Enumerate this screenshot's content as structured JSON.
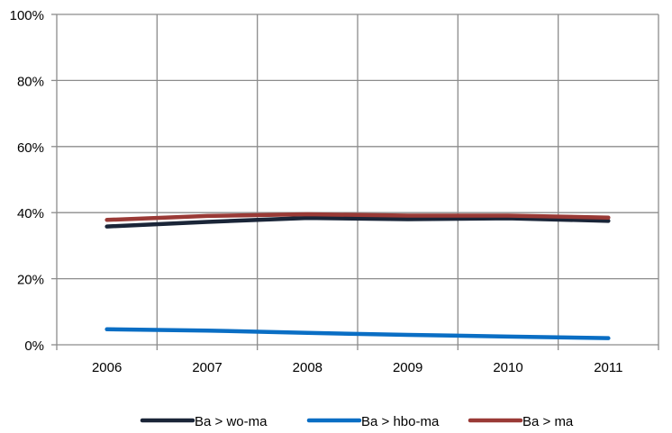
{
  "chart_data": {
    "type": "line",
    "categories": [
      "2006",
      "2007",
      "2008",
      "2009",
      "2010",
      "2011"
    ],
    "ylim": [
      0,
      100
    ],
    "yticks": [
      0,
      20,
      40,
      60,
      80,
      100
    ],
    "ytick_labels": [
      "0%",
      "20%",
      "40%",
      "60%",
      "80%",
      "100%"
    ],
    "grid": true,
    "legend_position": "bottom",
    "series": [
      {
        "name": "Ba > wo-ma",
        "color": "#1a2538",
        "values": [
          35.8,
          37.2,
          38.4,
          38.0,
          38.3,
          37.5
        ]
      },
      {
        "name": "Ba > hbo-ma",
        "color": "#0a6ec4",
        "values": [
          4.7,
          4.3,
          3.6,
          3.0,
          2.5,
          2.0
        ]
      },
      {
        "name": "Ba > ma",
        "color": "#9a3a36",
        "values": [
          37.8,
          39.0,
          39.5,
          39.1,
          39.1,
          38.5
        ]
      }
    ]
  }
}
